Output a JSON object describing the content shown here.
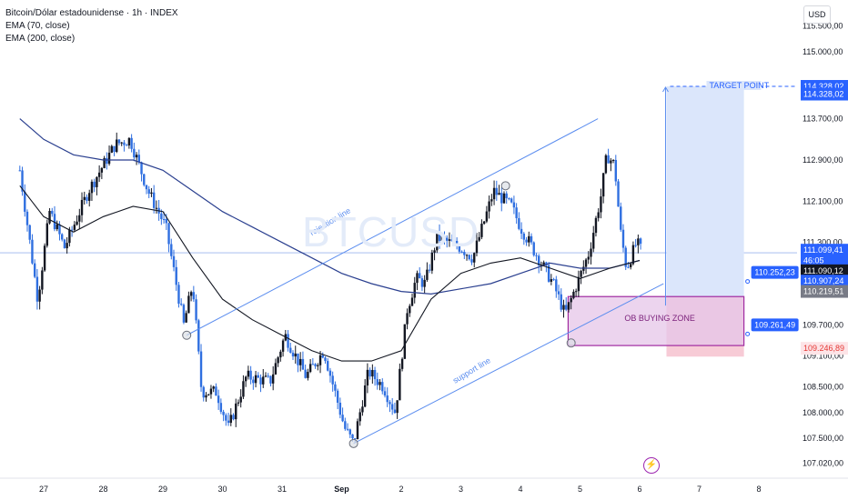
{
  "header": {
    "title": "Bitcoin/Dólar estadounidense · 1h · INDEX",
    "indicators": [
      "EMA (70, close)",
      "EMA (200, close)"
    ],
    "currency": "USD"
  },
  "watermark": "BTCUSD",
  "colors": {
    "bull": "#131722",
    "bear": "#2f6fe0",
    "ema70": "#131722",
    "ema200": "#2a3f8f",
    "trend": "#5b8def",
    "zone_fill": "#e6c6e8",
    "zone_border": "#a02aa0",
    "target_fill": "#dbe6fb",
    "stop_fill": "#f6c5d2",
    "label_blue": "#2962ff",
    "label_red": "#e53935"
  },
  "chart_data": {
    "type": "candlestick",
    "title": "Bitcoin/Dólar estadounidense · 1h · INDEX",
    "yrange": [
      106900,
      115700
    ],
    "xrange": [
      26.6,
      8.55
    ],
    "y_ticks": [
      "115.000,00",
      "114.328,02",
      "113.700,00",
      "112.900,00",
      "112.100,00",
      "111.300,00",
      "110.907,24",
      "110.219,51",
      "109.700,00",
      "108.500,00",
      "108.000,00",
      "107.500,00",
      "107.020,00"
    ],
    "x_ticks": [
      "27",
      "28",
      "29",
      "30",
      "31",
      "Sep",
      "2",
      "3",
      "4",
      "5",
      "6",
      "7",
      "8"
    ],
    "ohlc_keypoints": [
      {
        "day": "26.60",
        "price": 112700
      },
      {
        "day": "26.90",
        "price": 110200
      },
      {
        "day": "27.10",
        "price": 111900
      },
      {
        "day": "27.35",
        "price": 111200
      },
      {
        "day": "27.75",
        "price": 112300
      },
      {
        "day": "28.20",
        "price": 113200
      },
      {
        "day": "28.45",
        "price": 113300
      },
      {
        "day": "28.75",
        "price": 112300
      },
      {
        "day": "29.05",
        "price": 111600
      },
      {
        "day": "29.35",
        "price": 109700
      },
      {
        "day": "29.50",
        "price": 110500
      },
      {
        "day": "29.65",
        "price": 108400
      },
      {
        "day": "29.90",
        "price": 108400
      },
      {
        "day": "30.10",
        "price": 107700
      },
      {
        "day": "30.40",
        "price": 108700
      },
      {
        "day": "30.80",
        "price": 108600
      },
      {
        "day": "31.05",
        "price": 109500
      },
      {
        "day": "31.40",
        "price": 108700
      },
      {
        "day": "31.70",
        "price": 109200
      },
      {
        "day": "32.05",
        "price": 107700
      },
      {
        "day": "32.20",
        "price": 107400
      },
      {
        "day": "32.45",
        "price": 108800
      },
      {
        "day": "32.70",
        "price": 108500
      },
      {
        "day": "32.90",
        "price": 108000
      },
      {
        "day": "33.10",
        "price": 110000
      },
      {
        "day": "33.25",
        "price": 110600
      },
      {
        "day": "33.40",
        "price": 110500
      },
      {
        "day": "33.60",
        "price": 111400
      },
      {
        "day": "34.00",
        "price": 111200
      },
      {
        "day": "34.20",
        "price": 111000
      },
      {
        "day": "34.55",
        "price": 112300
      },
      {
        "day": "34.85",
        "price": 112000
      },
      {
        "day": "35.00",
        "price": 111600
      },
      {
        "day": "35.30",
        "price": 111000
      },
      {
        "day": "35.55",
        "price": 110500
      },
      {
        "day": "35.75",
        "price": 109900
      },
      {
        "day": "35.95",
        "price": 110500
      },
      {
        "day": "36.15",
        "price": 111100
      },
      {
        "day": "36.35",
        "price": 112200
      },
      {
        "day": "36.45",
        "price": 113000
      },
      {
        "day": "36.58",
        "price": 112800
      },
      {
        "day": "36.68",
        "price": 111500
      },
      {
        "day": "36.78",
        "price": 110800
      },
      {
        "day": "36.95",
        "price": 111300
      },
      {
        "day": "37.05",
        "price": 111100
      }
    ],
    "ema70": [
      {
        "x": 26.6,
        "y": 112400
      },
      {
        "x": 27.0,
        "y": 111800
      },
      {
        "x": 27.5,
        "y": 111500
      },
      {
        "x": 28.0,
        "y": 111800
      },
      {
        "x": 28.5,
        "y": 112000
      },
      {
        "x": 29.0,
        "y": 111900
      },
      {
        "x": 29.5,
        "y": 111000
      },
      {
        "x": 30.0,
        "y": 110200
      },
      {
        "x": 30.5,
        "y": 109800
      },
      {
        "x": 31.0,
        "y": 109500
      },
      {
        "x": 31.5,
        "y": 109200
      },
      {
        "x": 32.0,
        "y": 109000
      },
      {
        "x": 32.5,
        "y": 109000
      },
      {
        "x": 33.0,
        "y": 109200
      },
      {
        "x": 33.5,
        "y": 110200
      },
      {
        "x": 34.0,
        "y": 110700
      },
      {
        "x": 34.5,
        "y": 110900
      },
      {
        "x": 35.0,
        "y": 111000
      },
      {
        "x": 35.5,
        "y": 110800
      },
      {
        "x": 36.0,
        "y": 110600
      },
      {
        "x": 36.5,
        "y": 110800
      },
      {
        "x": 37.0,
        "y": 110950
      }
    ],
    "ema200": [
      {
        "x": 26.6,
        "y": 113700
      },
      {
        "x": 27.0,
        "y": 113300
      },
      {
        "x": 27.5,
        "y": 113000
      },
      {
        "x": 28.0,
        "y": 112900
      },
      {
        "x": 28.5,
        "y": 112900
      },
      {
        "x": 29.0,
        "y": 112700
      },
      {
        "x": 29.5,
        "y": 112300
      },
      {
        "x": 30.0,
        "y": 111900
      },
      {
        "x": 30.5,
        "y": 111600
      },
      {
        "x": 31.0,
        "y": 111300
      },
      {
        "x": 31.5,
        "y": 111000
      },
      {
        "x": 32.0,
        "y": 110700
      },
      {
        "x": 32.5,
        "y": 110500
      },
      {
        "x": 33.0,
        "y": 110350
      },
      {
        "x": 33.5,
        "y": 110300
      },
      {
        "x": 34.0,
        "y": 110400
      },
      {
        "x": 34.5,
        "y": 110500
      },
      {
        "x": 35.0,
        "y": 110700
      },
      {
        "x": 35.5,
        "y": 110900
      },
      {
        "x": 36.0,
        "y": 110800
      },
      {
        "x": 36.5,
        "y": 110800
      },
      {
        "x": 37.0,
        "y": 110950
      }
    ],
    "rejection_line": [
      {
        "x": 29.4,
        "y": 109500
      },
      {
        "x": 36.3,
        "y": 113700
      }
    ],
    "support_line": [
      {
        "x": 32.2,
        "y": 107400
      },
      {
        "x": 37.4,
        "y": 110500
      }
    ],
    "pivots": [
      {
        "x": 29.4,
        "y": 109500
      },
      {
        "x": 32.2,
        "y": 107400
      },
      {
        "x": 34.75,
        "y": 112400
      },
      {
        "x": 35.85,
        "y": 109350
      }
    ],
    "ob_zone": {
      "x0": 35.8,
      "x1": 38.75,
      "y0": 109300,
      "y1": 110250
    },
    "position": {
      "entry": 110252.23,
      "stop": 109261.49,
      "target": 114328.02,
      "x0": 37.45,
      "x1": 38.75
    },
    "labels": {
      "ob": "OB BUYING ZONE",
      "target": "TARGET POINT",
      "rejection": "rejection line",
      "support": "support line",
      "entry": "110.252,23",
      "stop": "109.261,49",
      "axis_target": "114.328,02",
      "axis_target2": "114.328,02",
      "price_last": "111.099,41",
      "countdown": "46:05",
      "price2": "111.090,12",
      "price3": "110.907,24",
      "price4": "110.219,51",
      "price5": "109.246,89",
      "tick_extra": "109.100,00",
      "tick_top": "115.500,00"
    }
  }
}
